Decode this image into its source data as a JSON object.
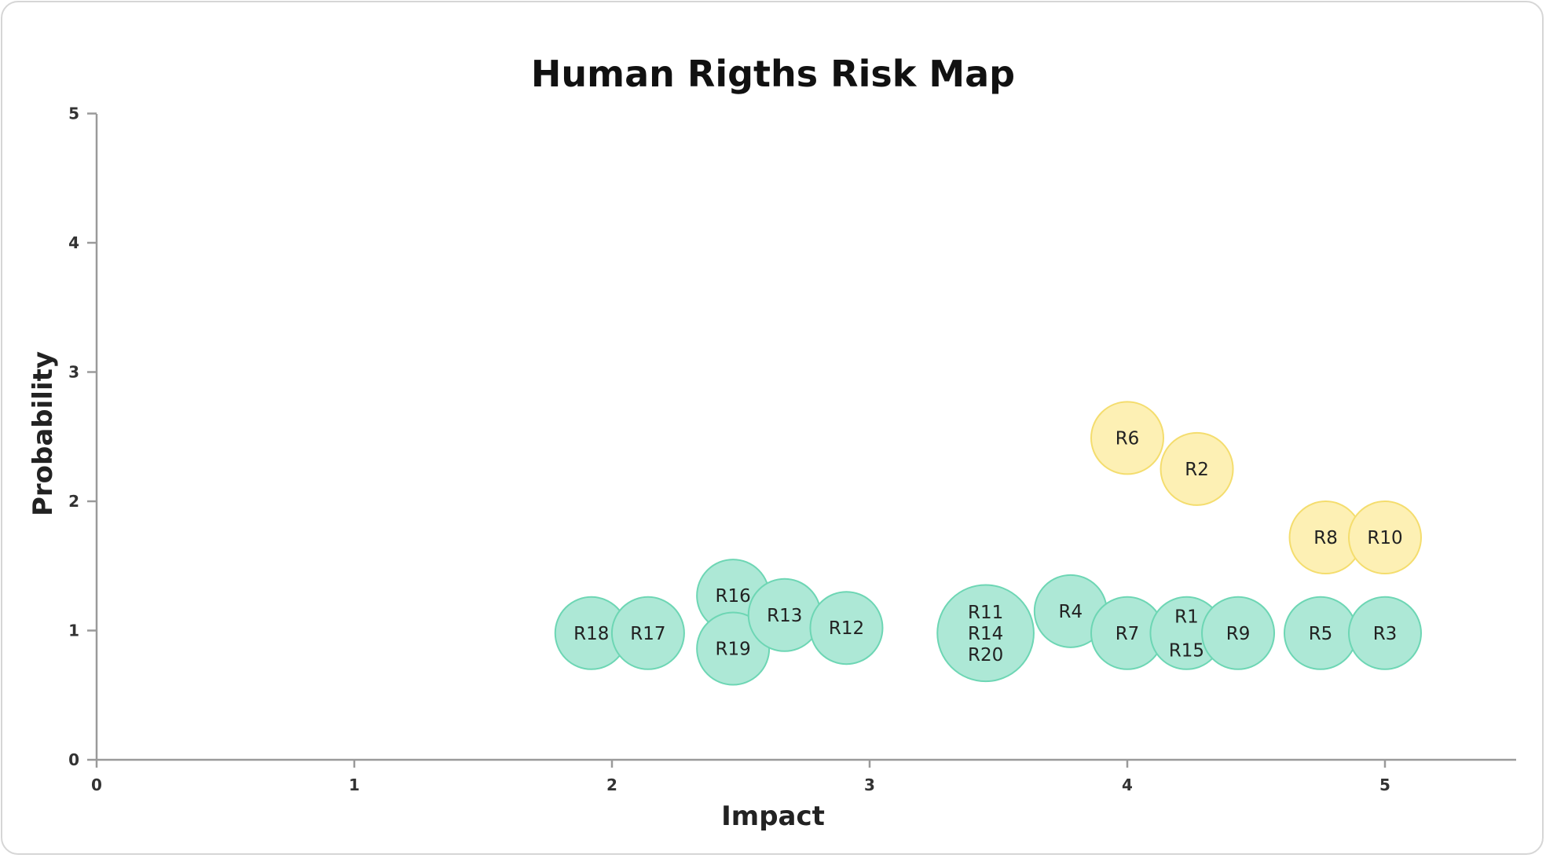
{
  "chart_data": {
    "type": "scatter",
    "title": "Human Rigths Risk Map",
    "xlabel": "Impact",
    "ylabel": "Probability",
    "xlim": [
      0,
      5.5
    ],
    "ylim": [
      0,
      5
    ],
    "x_ticks": [
      "0",
      "1",
      "2",
      "3",
      "4",
      "5"
    ],
    "y_ticks": [
      "0",
      "1",
      "2",
      "3",
      "4",
      "5"
    ],
    "grid": false,
    "legend": "none",
    "colors": {
      "low_fill": "#ade8d6",
      "low_stroke": "#6dd6b4",
      "medium_fill": "#fdf0b4",
      "medium_stroke": "#f4dd6e"
    },
    "points": [
      {
        "labels": [
          "R18"
        ],
        "x": 1.92,
        "y": 0.98,
        "level": "low",
        "size": 1
      },
      {
        "labels": [
          "R17"
        ],
        "x": 2.14,
        "y": 0.98,
        "level": "low",
        "size": 1
      },
      {
        "labels": [
          "R16"
        ],
        "x": 2.47,
        "y": 1.27,
        "level": "low",
        "size": 1
      },
      {
        "labels": [
          "R19"
        ],
        "x": 2.47,
        "y": 0.86,
        "level": "low",
        "size": 1
      },
      {
        "labels": [
          "R13"
        ],
        "x": 2.67,
        "y": 1.12,
        "level": "low",
        "size": 1
      },
      {
        "labels": [
          "R12"
        ],
        "x": 2.91,
        "y": 1.02,
        "level": "low",
        "size": 1
      },
      {
        "labels": [
          "R11",
          "R14",
          "R20"
        ],
        "x": 3.45,
        "y": 0.98,
        "level": "low",
        "size": 3
      },
      {
        "labels": [
          "R4"
        ],
        "x": 3.78,
        "y": 1.15,
        "level": "low",
        "size": 1
      },
      {
        "labels": [
          "R7"
        ],
        "x": 4.0,
        "y": 0.98,
        "level": "low",
        "size": 1
      },
      {
        "labels": [
          "R1",
          "R15"
        ],
        "x": 4.23,
        "y": 0.98,
        "level": "low",
        "size": 1
      },
      {
        "labels": [
          "R9"
        ],
        "x": 4.43,
        "y": 0.98,
        "level": "low",
        "size": 1
      },
      {
        "labels": [
          "R5"
        ],
        "x": 4.75,
        "y": 0.98,
        "level": "low",
        "size": 1
      },
      {
        "labels": [
          "R3"
        ],
        "x": 5.0,
        "y": 0.98,
        "level": "low",
        "size": 1
      },
      {
        "labels": [
          "R6"
        ],
        "x": 4.0,
        "y": 2.49,
        "level": "medium",
        "size": 1
      },
      {
        "labels": [
          "R2"
        ],
        "x": 4.27,
        "y": 2.25,
        "level": "medium",
        "size": 1
      },
      {
        "labels": [
          "R8"
        ],
        "x": 4.77,
        "y": 1.72,
        "level": "medium",
        "size": 1
      },
      {
        "labels": [
          "R10"
        ],
        "x": 5.0,
        "y": 1.72,
        "level": "medium",
        "size": 1
      }
    ]
  }
}
